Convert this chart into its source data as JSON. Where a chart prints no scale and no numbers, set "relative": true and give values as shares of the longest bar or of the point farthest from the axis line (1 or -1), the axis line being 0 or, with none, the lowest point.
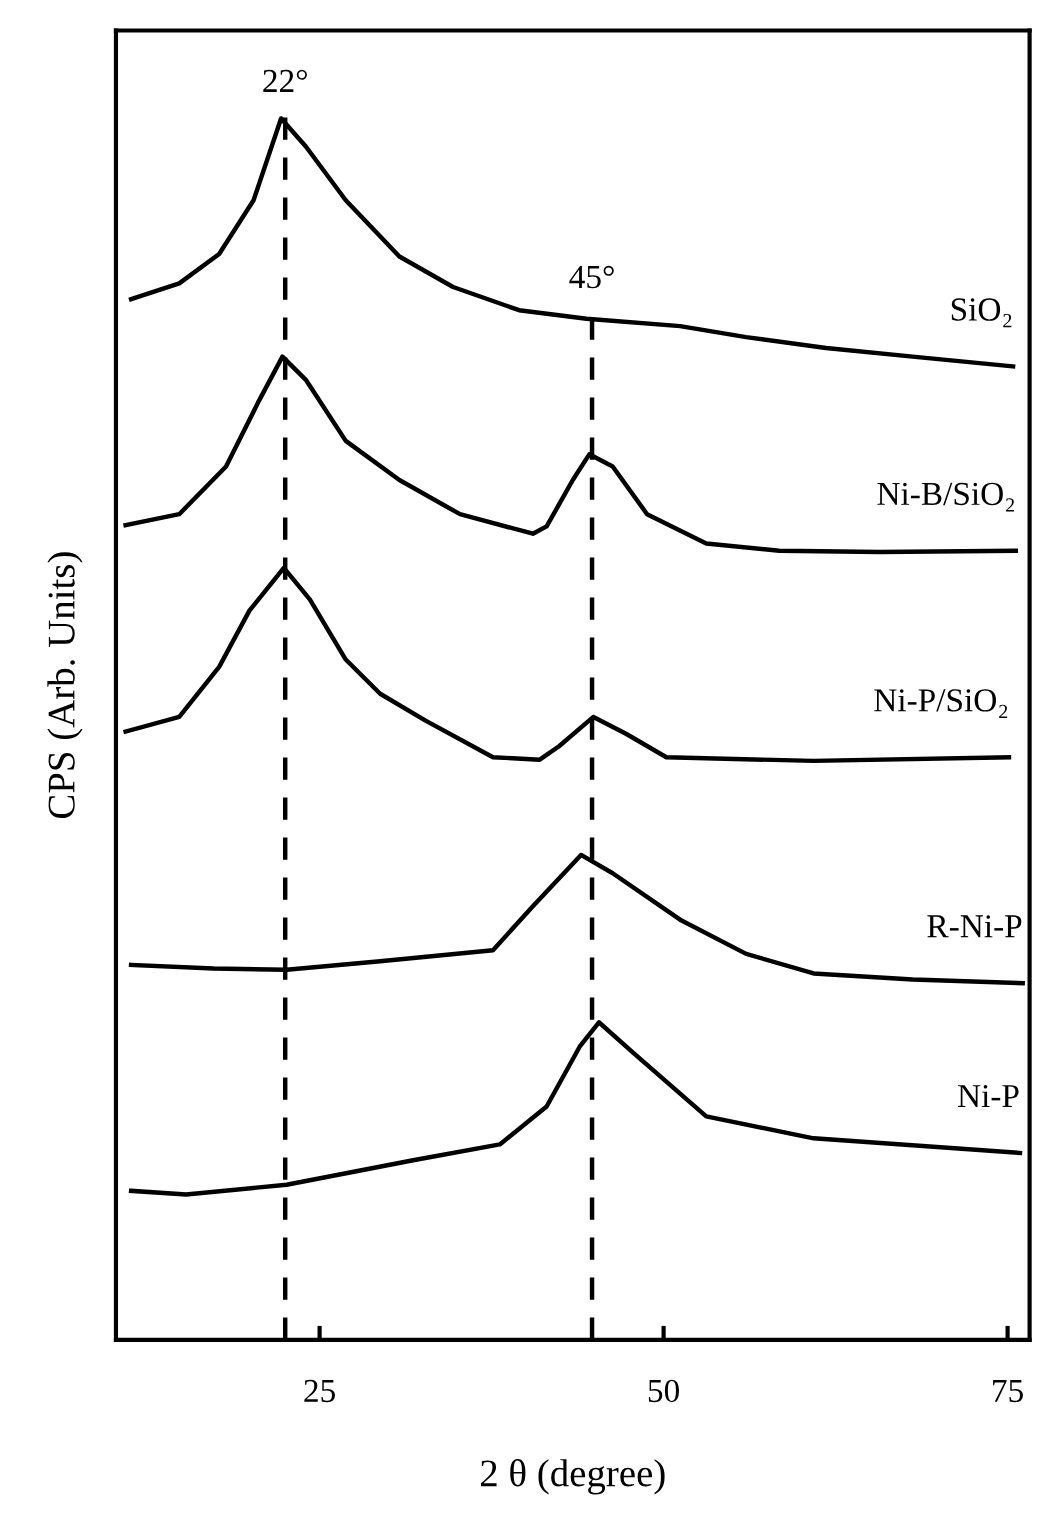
{
  "chart_data": {
    "type": "line",
    "relative": true,
    "xlabel": "2 θ (degree)",
    "ylabel": "CPS (Arb. Units)",
    "xlim": [
      10.2,
      76.6
    ],
    "xticks": [
      25,
      50,
      75
    ],
    "grid": false,
    "legend": false,
    "marker": "none",
    "line_style": "solid",
    "tick_labels": "x",
    "ref_lines": [
      {
        "axis": "x",
        "value": 22.5,
        "label": "22°",
        "color": "#000000",
        "line_style": "dashed"
      },
      {
        "axis": "x",
        "value": 44.8,
        "label": "45°",
        "color": "#000000",
        "line_style": "dashed"
      }
    ],
    "series": [
      {
        "name": "SiO₂",
        "color": "#000000",
        "x": [
          11.3,
          14.8,
          17.7,
          20.2,
          22.2,
          24.0,
          26.9,
          30.8,
          34.7,
          39.5,
          44.4,
          51.2,
          56.0,
          61.8,
          68.1,
          75.4
        ],
        "values": [
          0.852,
          0.865,
          0.889,
          0.933,
          1.0,
          0.977,
          0.933,
          0.887,
          0.862,
          0.843,
          0.836,
          0.83,
          0.821,
          0.812,
          0.805,
          0.797
        ]
      },
      {
        "name": "Ni-B/SiO₂",
        "color": "#000000",
        "x": [
          10.9,
          14.8,
          18.2,
          20.6,
          22.3,
          24.0,
          26.9,
          30.8,
          35.2,
          40.5,
          41.5,
          43.4,
          44.6,
          46.3,
          48.8,
          53.1,
          58.4,
          65.7,
          75.6
        ],
        "values": [
          0.667,
          0.676,
          0.715,
          0.769,
          0.805,
          0.786,
          0.736,
          0.704,
          0.676,
          0.66,
          0.666,
          0.704,
          0.725,
          0.715,
          0.676,
          0.652,
          0.646,
          0.645,
          0.646
        ]
      },
      {
        "name": "Ni-P/SiO₂",
        "color": "#000000",
        "x": [
          10.9,
          14.8,
          17.7,
          19.9,
          22.4,
          24.3,
          26.9,
          29.4,
          32.7,
          37.6,
          41.0,
          42.4,
          44.9,
          47.3,
          50.2,
          60.9,
          75.1
        ],
        "values": [
          0.498,
          0.51,
          0.551,
          0.597,
          0.632,
          0.606,
          0.557,
          0.529,
          0.507,
          0.477,
          0.475,
          0.486,
          0.51,
          0.496,
          0.477,
          0.474,
          0.477
        ]
      },
      {
        "name": "R-Ni-P",
        "color": "#000000",
        "x": [
          11.3,
          17.3,
          22.6,
          29.4,
          37.6,
          40.5,
          44.0,
          46.3,
          51.2,
          56.0,
          60.9,
          68.1,
          76.1
        ],
        "values": [
          0.307,
          0.304,
          0.303,
          0.31,
          0.319,
          0.355,
          0.397,
          0.382,
          0.344,
          0.316,
          0.3,
          0.295,
          0.292
        ]
      },
      {
        "name": "Ni-P",
        "color": "#000000",
        "x": [
          11.3,
          15.3,
          22.6,
          31.8,
          38.1,
          41.5,
          43.9,
          45.3,
          47.8,
          53.1,
          60.9,
          75.9
        ],
        "values": [
          0.122,
          0.119,
          0.127,
          0.147,
          0.16,
          0.191,
          0.24,
          0.26,
          0.235,
          0.183,
          0.165,
          0.153
        ]
      }
    ]
  }
}
